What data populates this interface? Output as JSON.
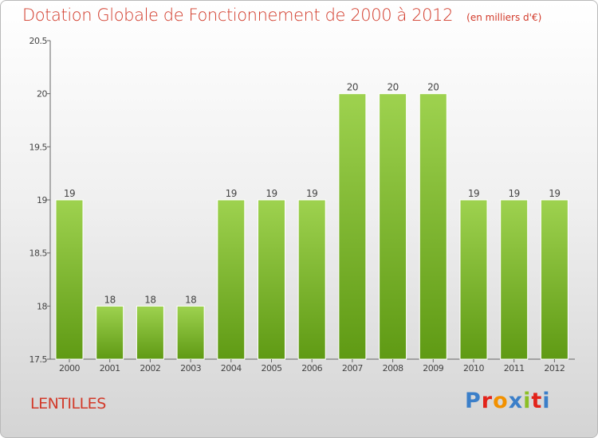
{
  "header": {
    "title": "Dotation Globale de Fonctionnement de 2000 à 2012",
    "unit": "(en milliers d'€)"
  },
  "footer": {
    "place": "LENTILLES",
    "logo": "Proxiti"
  },
  "colors": {
    "title": "#d23a2a",
    "bar_top": "#9ed24f",
    "bar_bottom": "#5f9a14",
    "logo": [
      "#3b7fc9",
      "#e2231a",
      "#f29100",
      "#3b7fc9",
      "#8cbf26",
      "#e2231a",
      "#3b7fc9"
    ]
  },
  "chart_data": {
    "type": "bar",
    "categories": [
      "2000",
      "2001",
      "2002",
      "2003",
      "2004",
      "2005",
      "2006",
      "2007",
      "2008",
      "2009",
      "2010",
      "2011",
      "2012"
    ],
    "values": [
      19,
      18,
      18,
      18,
      19,
      19,
      19,
      20,
      20,
      20,
      19,
      19,
      19
    ],
    "data_labels": [
      "19",
      "18",
      "18",
      "18",
      "19",
      "19",
      "19",
      "20",
      "20",
      "20",
      "19",
      "19",
      "19"
    ],
    "ylim": [
      17.5,
      20.5
    ],
    "yticks": [
      17.5,
      18,
      18.5,
      19,
      19.5,
      20,
      20.5
    ],
    "ytick_labels": [
      "17.5",
      "18",
      "18.5",
      "19",
      "19.5",
      "20",
      "20.5"
    ],
    "grid": false,
    "xlabel": "",
    "ylabel": ""
  }
}
